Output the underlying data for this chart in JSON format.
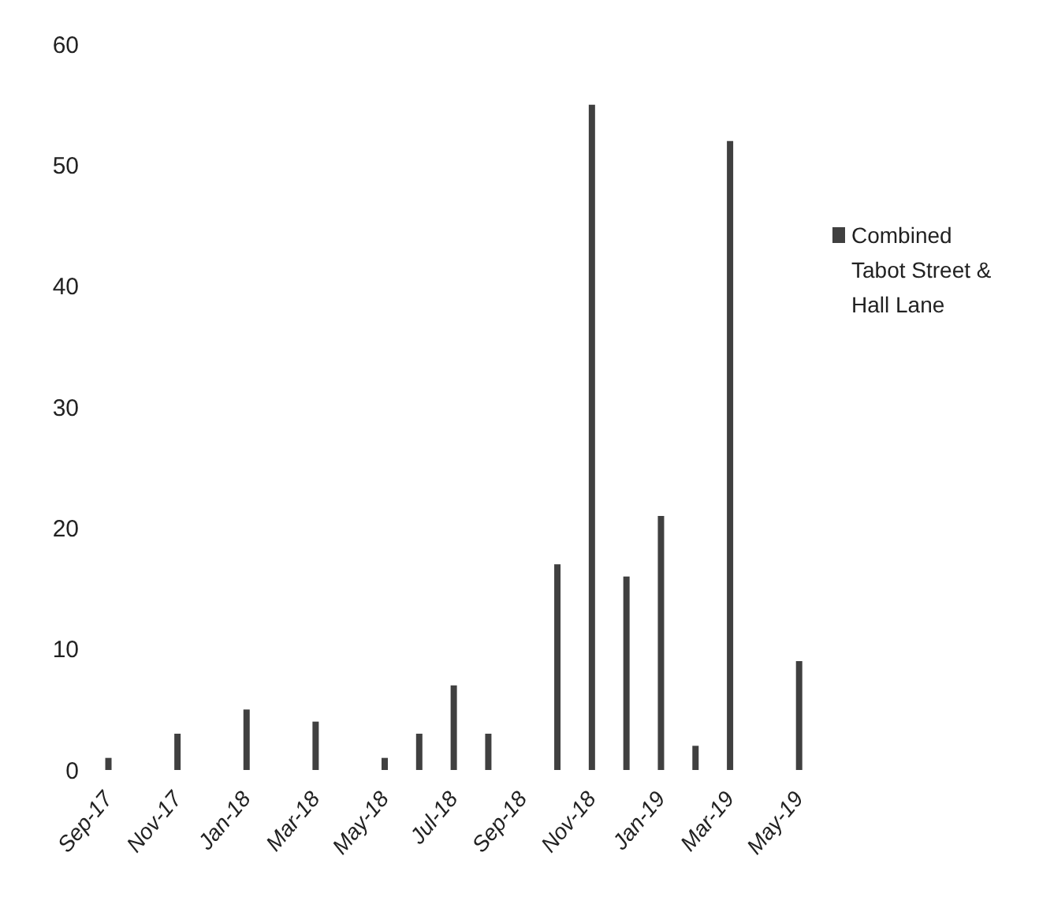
{
  "chart_data": {
    "type": "bar",
    "categories": [
      "Sep-17",
      null,
      "Nov-17",
      null,
      "Jan-18",
      null,
      "Mar-18",
      null,
      "May-18",
      null,
      "Jul-18",
      null,
      "Sep-18",
      null,
      "Nov-18",
      null,
      "Jan-19",
      null,
      "Mar-19",
      null,
      "May-19"
    ],
    "series": [
      {
        "name": "Combined Tabot Street & Hall Lane",
        "color": "#404040",
        "values": [
          1,
          null,
          3,
          null,
          5,
          null,
          4,
          null,
          1,
          3,
          7,
          3,
          null,
          17,
          55,
          16,
          21,
          2,
          52,
          null,
          9
        ]
      }
    ],
    "ylim": [
      0,
      60
    ],
    "yticks": [
      0,
      10,
      20,
      30,
      40,
      50,
      60
    ],
    "grid": false,
    "legend": "right"
  }
}
